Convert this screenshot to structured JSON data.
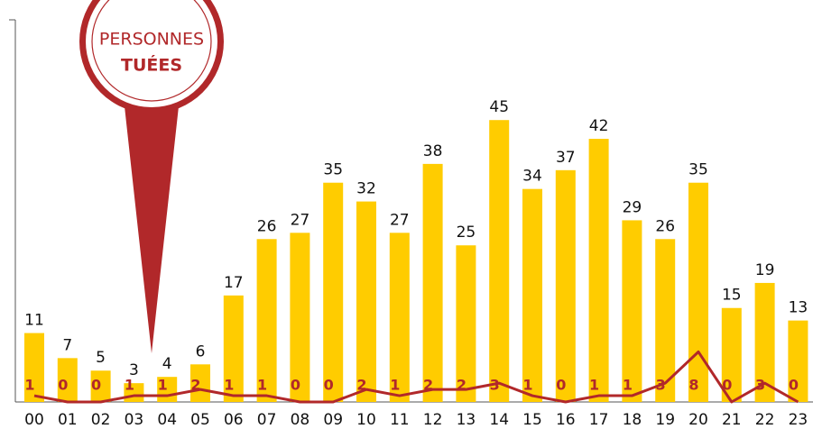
{
  "chart_data": {
    "type": "bar",
    "categories": [
      "00",
      "01",
      "02",
      "03",
      "04",
      "05",
      "06",
      "07",
      "08",
      "09",
      "10",
      "11",
      "12",
      "13",
      "14",
      "15",
      "16",
      "17",
      "18",
      "19",
      "20",
      "21",
      "22",
      "23"
    ],
    "series": [
      {
        "color": "#ffcc00",
        "values": [
          11,
          7,
          5,
          3,
          4,
          6,
          17,
          26,
          27,
          35,
          32,
          27,
          38,
          25,
          45,
          34,
          37,
          42,
          29,
          26,
          35,
          15,
          19,
          13
        ]
      },
      {
        "type": "line",
        "color": "#b1282a",
        "values": [
          1,
          0,
          0,
          1,
          1,
          2,
          1,
          1,
          0,
          0,
          2,
          1,
          2,
          2,
          3,
          1,
          0,
          1,
          1,
          3,
          8,
          0,
          3,
          0
        ]
      }
    ],
    "ylim": [
      0,
      61
    ],
    "annotation": [
      "PERSONNES",
      "TUÉES"
    ]
  }
}
